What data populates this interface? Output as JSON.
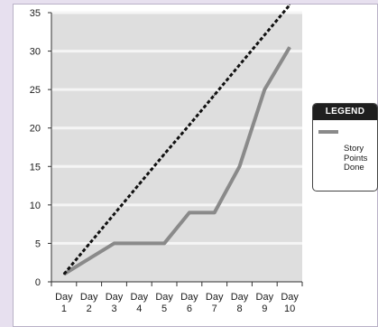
{
  "chart_data": {
    "type": "line",
    "title": "",
    "xlabel": "",
    "ylabel": "",
    "categories": [
      [
        "Day",
        "1"
      ],
      [
        "Day",
        "2"
      ],
      [
        "Day",
        "3"
      ],
      [
        "Day",
        "4"
      ],
      [
        "Day",
        "5"
      ],
      [
        "Day",
        "6"
      ],
      [
        "Day",
        "7"
      ],
      [
        "Day",
        "8"
      ],
      [
        "Day",
        "9"
      ],
      [
        "Day",
        "10"
      ]
    ],
    "y_ticks": [
      0,
      5,
      10,
      15,
      20,
      25,
      30,
      35
    ],
    "ylim": [
      0,
      35
    ],
    "grid": "horizontal",
    "legend_position": "right",
    "series": [
      {
        "name": "Story Points Done",
        "style": "solid",
        "color": "#8a8a8a",
        "values": [
          1,
          3,
          5,
          5,
          5,
          9,
          9,
          15,
          25,
          30.5
        ]
      },
      {
        "name": "",
        "style": "dashed",
        "color": "#111111",
        "values": [
          1,
          4.9,
          8.8,
          12.7,
          16.6,
          20.4,
          24.3,
          28.2,
          32.1,
          36
        ]
      }
    ]
  },
  "legend": {
    "title": "LEGEND",
    "items": [
      {
        "label": "Story\nPoints\nDone",
        "color": "#8a8a8a"
      }
    ]
  },
  "colors": {
    "plot_background": "#dedede",
    "grid": "#f5f5f5",
    "page_background": "#e7e0ef"
  }
}
